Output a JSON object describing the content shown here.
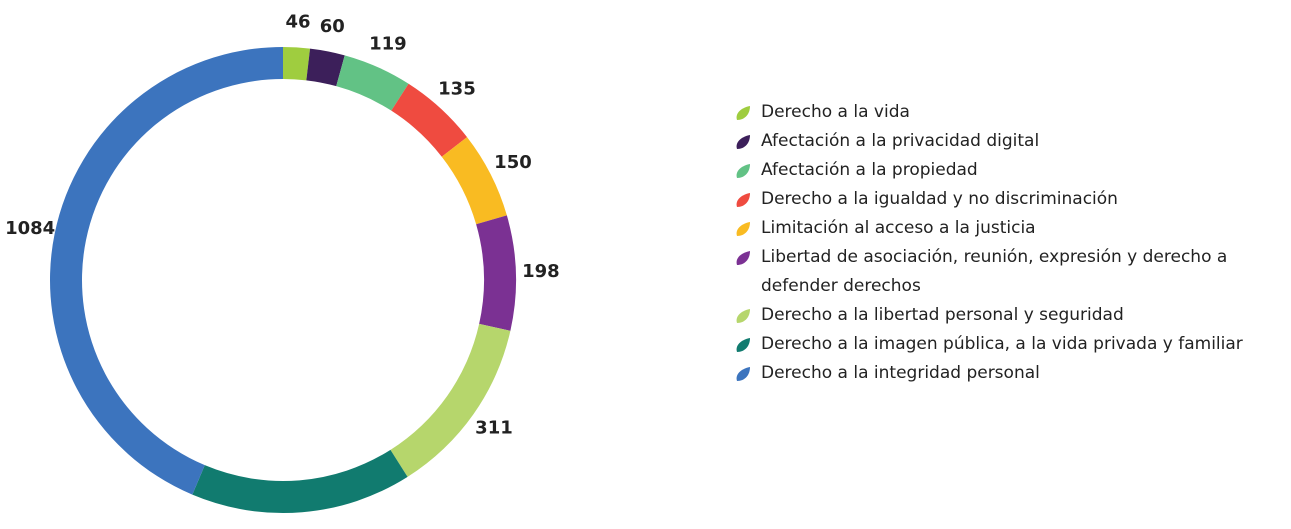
{
  "chart_data": {
    "type": "donut",
    "categories": [
      "Derecho a la vida",
      "Afectación a la privacidad digital",
      "Afectación a la propiedad",
      "Derecho a la igualdad y no discriminación",
      "Limitación al acceso a la justicia",
      "Libertad de asociación, reunión, expresión y derecho a defender derechos",
      "Derecho a la libertad personal y seguridad",
      "Derecho a la imagen pública, a la vida privada y familiar",
      "Derecho a la integridad personal"
    ],
    "values": [
      46,
      60,
      119,
      135,
      150,
      198,
      311,
      381,
      1084
    ],
    "colors": [
      "#9fcd3f",
      "#3c1f5a",
      "#62c285",
      "#ef4b40",
      "#f9bb22",
      "#7b3193",
      "#b6d66c",
      "#117b6f",
      "#3c74be"
    ],
    "legend": "right"
  }
}
